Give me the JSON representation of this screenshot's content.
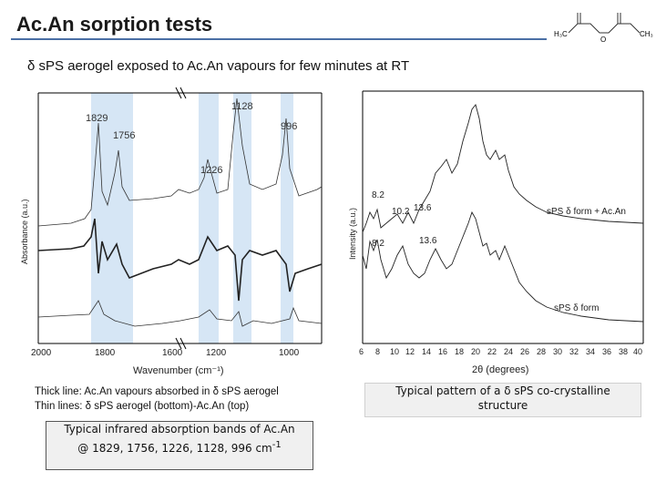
{
  "title": "Ac.An sorption tests",
  "molecule": {
    "left_group": "H₃C",
    "right_group": "CH₃",
    "center_atom": "O"
  },
  "subtitle": "δ sPS aerogel exposed to Ac.An vapours for few minutes at RT",
  "ir_chart": {
    "xlabel": "Wavenumber (cm⁻¹)",
    "ylabel": "Absorbance (a.u.)",
    "xticks": [
      "2000",
      "1800",
      "1600",
      "1200",
      "1000"
    ],
    "peaks": [
      "1829",
      "1756",
      "1226",
      "1128",
      "996"
    ]
  },
  "xrd_chart": {
    "xlabel": "2θ (degrees)",
    "ylabel": "Intensity (a.u.)",
    "xticks": [
      "6",
      "8",
      "10",
      "12",
      "14",
      "16",
      "18",
      "20",
      "22",
      "24",
      "26",
      "28",
      "30",
      "32",
      "34",
      "36",
      "38",
      "40"
    ],
    "peaks_top": [
      "8.2",
      "10.2",
      "13.6"
    ],
    "peaks_bottom": [
      "8.2",
      "13.6"
    ],
    "label_top": "sPS δ form + Ac.An",
    "label_bottom": "sPS δ form"
  },
  "caption_left": {
    "line1": "Thick line: Ac.An vapours absorbed in δ sPS aerogel",
    "line2": "Thin lines: δ sPS aerogel (bottom)-Ac.An (top)"
  },
  "caption_right": {
    "line1": "Typical pattern of a δ sPS co-crystalline",
    "line2": "structure"
  },
  "caption_box": {
    "line1": "Typical infrared absorption bands of Ac.An",
    "line2_main": "@ 1829, 1756, 1226, 1128, 996 cm",
    "line2_sup": "-1"
  },
  "colors": {
    "accent": "#4a6fa5",
    "highlight": "#d6e6f5"
  }
}
